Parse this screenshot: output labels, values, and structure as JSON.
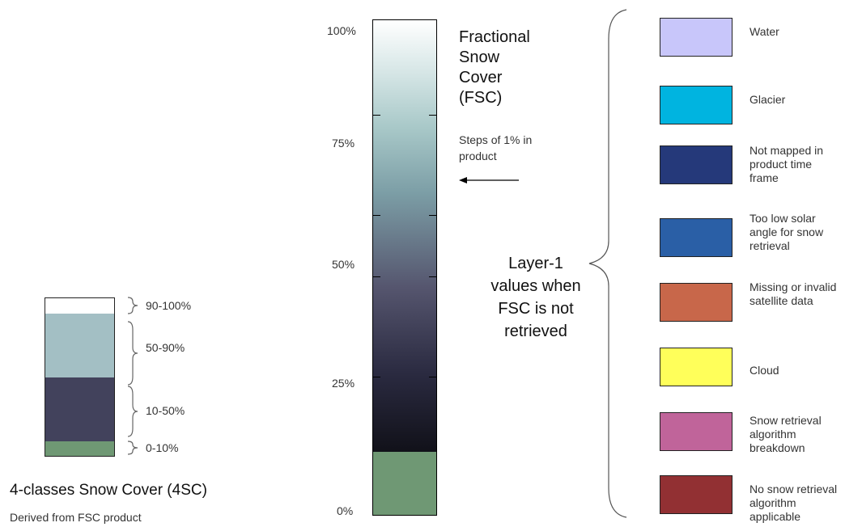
{
  "fsc": {
    "title_lines": [
      "Fractional",
      "Snow",
      "Cover",
      "(FSC)"
    ],
    "note_lines": [
      "Steps of 1% in",
      "product"
    ],
    "axis_ticks": [
      "100%",
      "75%",
      "50%",
      "25%",
      "0%"
    ],
    "colors": {
      "top": "#ffffff",
      "upper_mid": "#a8c8c8",
      "lower_mid": "#55556e",
      "bottom": "#181826",
      "low_band": "#6f9874"
    }
  },
  "layer1": {
    "label_lines": [
      "Layer-1",
      "values when",
      "FSC is not",
      "retrieved"
    ],
    "items": [
      {
        "name": "water",
        "color": "#c8c6fa",
        "lines": [
          "Water"
        ]
      },
      {
        "name": "glacier",
        "color": "#00b4e0",
        "lines": [
          "Glacier"
        ]
      },
      {
        "name": "not-mapped",
        "color": "#25397a",
        "lines": [
          "Not mapped in",
          "product time",
          "frame"
        ]
      },
      {
        "name": "low-solar",
        "color": "#2a5fa6",
        "lines": [
          "Too low solar",
          "angle for snow",
          "retrieval"
        ]
      },
      {
        "name": "missing",
        "color": "#c8674a",
        "lines": [
          "Missing or invalid",
          "satellite data"
        ]
      },
      {
        "name": "cloud",
        "color": "#ffff5a",
        "lines": [
          "Cloud"
        ]
      },
      {
        "name": "breakdown",
        "color": "#c0649a",
        "lines": [
          "Snow retrieval",
          "algorithm",
          "breakdown"
        ]
      },
      {
        "name": "not-applicable",
        "color": "#923033",
        "lines": [
          "No snow retrieval",
          "algorithm",
          "applicable"
        ]
      }
    ]
  },
  "sc4": {
    "title": "4-classes Snow Cover (4SC)",
    "subtitle": "Derived from FSC product",
    "classes": [
      {
        "label": "90-100%",
        "color": "#ffffff"
      },
      {
        "label": "50-90%",
        "color": "#a3bfc4"
      },
      {
        "label": "10-50%",
        "color": "#42425c"
      },
      {
        "label": "0-10%",
        "color": "#6f9874"
      }
    ]
  }
}
